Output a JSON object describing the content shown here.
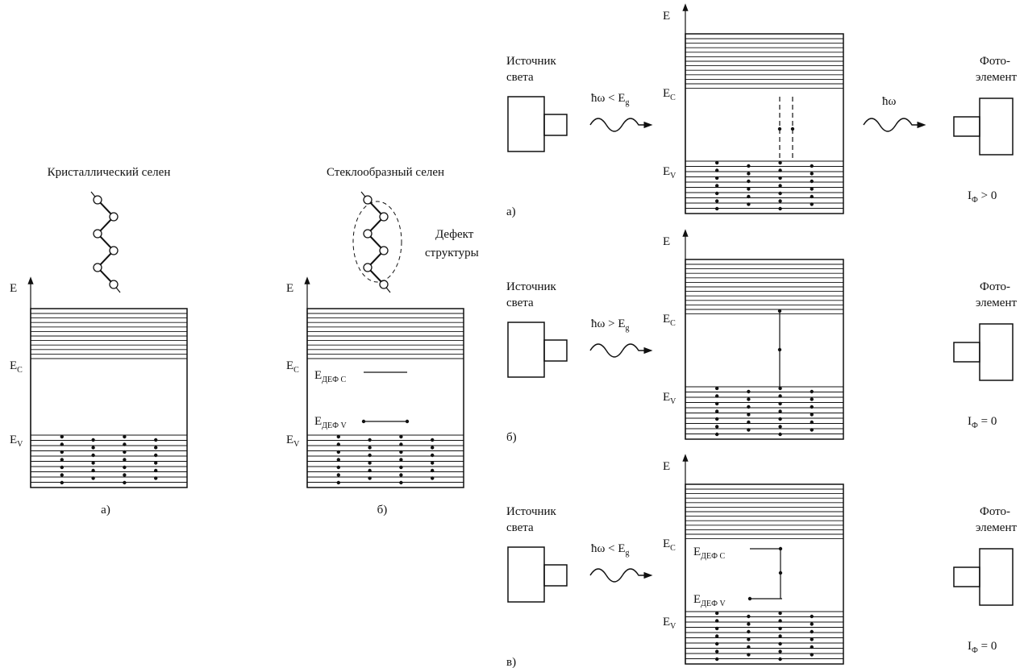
{
  "panels": [
    {
      "title": "Кристаллический селен",
      "axis": "E",
      "ec": {
        "main": "E",
        "sub": "C"
      },
      "ev": {
        "main": "E",
        "sub": "V"
      },
      "caption": "а)"
    },
    {
      "title": "Стеклообразный селен",
      "defect": [
        "Дефект",
        "структуры"
      ],
      "axis": "E",
      "ec": {
        "main": "E",
        "sub": "C"
      },
      "edc": {
        "main": "E",
        "sub": "ДЕФ С"
      },
      "edv": {
        "main": "E",
        "sub": "ДЕФ V"
      },
      "ev": {
        "main": "E",
        "sub": "V"
      },
      "caption": "б)"
    }
  ],
  "experiments": [
    {
      "source": [
        "Источник",
        "света"
      ],
      "photon_in": {
        "main": "ħω < E",
        "sub": "g"
      },
      "axis": "E",
      "ec": {
        "main": "E",
        "sub": "C"
      },
      "ev": {
        "main": "E",
        "sub": "V"
      },
      "detector": [
        "Фото-",
        "элемент"
      ],
      "photon_out": "ħω",
      "current": {
        "main": "I",
        "sub": "Ф",
        "rest": " > 0"
      },
      "caption": "а)"
    },
    {
      "source": [
        "Источник",
        "света"
      ],
      "photon_in": {
        "main": "ħω > E",
        "sub": "g"
      },
      "axis": "E",
      "ec": {
        "main": "E",
        "sub": "C"
      },
      "ev": {
        "main": "E",
        "sub": "V"
      },
      "detector": [
        "Фото-",
        "элемент"
      ],
      "current": {
        "main": "I",
        "sub": "Ф",
        "rest": " = 0"
      },
      "caption": "б)"
    },
    {
      "source": [
        "Источник",
        "света"
      ],
      "photon_in": {
        "main": "ħω < E",
        "sub": "g"
      },
      "axis": "E",
      "ec": {
        "main": "E",
        "sub": "C"
      },
      "edc": {
        "main": "E",
        "sub": "ДЕФ С"
      },
      "edv": {
        "main": "E",
        "sub": "ДЕФ V"
      },
      "ev": {
        "main": "E",
        "sub": "V"
      },
      "detector": [
        "Фото-",
        "элемент"
      ],
      "current": {
        "main": "I",
        "sub": "Ф",
        "rest": " = 0"
      },
      "caption": "в)"
    }
  ]
}
